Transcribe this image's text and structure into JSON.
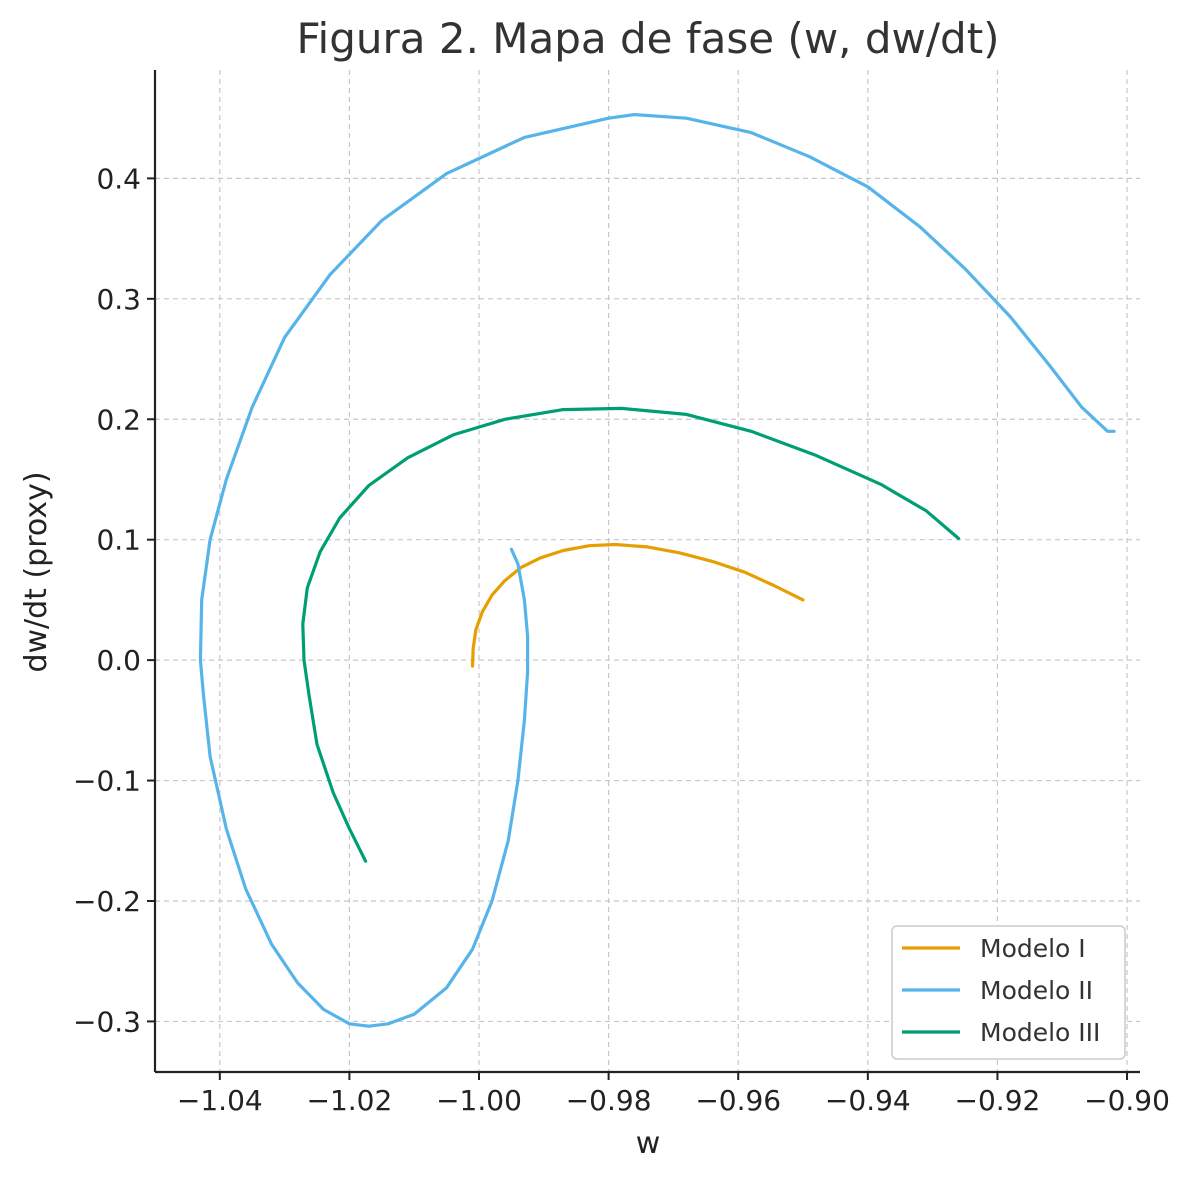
{
  "chart_data": {
    "type": "line",
    "title": "Figura 2. Mapa de fase (w, dw/dt)",
    "xlabel": "w",
    "ylabel": "dw/dt (proxy)",
    "xlim": [
      -1.05,
      -0.898
    ],
    "ylim": [
      -0.342,
      0.49
    ],
    "xticks": [
      -1.04,
      -1.02,
      -1.0,
      -0.98,
      -0.96,
      -0.94,
      -0.92,
      -0.9
    ],
    "xtick_labels": [
      "−1.04",
      "−1.02",
      "−1.00",
      "−0.98",
      "−0.96",
      "−0.94",
      "−0.92",
      "−0.90"
    ],
    "yticks": [
      -0.3,
      -0.2,
      -0.1,
      0.0,
      0.1,
      0.2,
      0.3,
      0.4
    ],
    "ytick_labels": [
      "−0.3",
      "−0.2",
      "−0.1",
      "0.0",
      "0.1",
      "0.2",
      "0.3",
      "0.4"
    ],
    "grid": true,
    "legend_position": "lower-right",
    "series": [
      {
        "name": "Modelo I",
        "color": "#E69F00",
        "x": [
          -1.001,
          -1.0009,
          -1.0005,
          -0.9995,
          -0.998,
          -0.996,
          -0.9935,
          -0.9905,
          -0.987,
          -0.983,
          -0.979,
          -0.974,
          -0.969,
          -0.964,
          -0.959,
          -0.9545,
          -0.95
        ],
        "y": [
          -0.005,
          0.01,
          0.025,
          0.04,
          0.054,
          0.066,
          0.077,
          0.085,
          0.091,
          0.095,
          0.096,
          0.094,
          0.089,
          0.082,
          0.073,
          0.062,
          0.05
        ]
      },
      {
        "name": "Modelo II",
        "color": "#56B4E9",
        "x": [
          -0.995,
          -0.994,
          -0.993,
          -0.9925,
          -0.9925,
          -0.993,
          -0.994,
          -0.9955,
          -0.998,
          -1.001,
          -1.005,
          -1.01,
          -1.014,
          -1.017,
          -1.02,
          -1.024,
          -1.028,
          -1.032,
          -1.036,
          -1.039,
          -1.0415,
          -1.0425,
          -1.043,
          -1.0428,
          -1.0415,
          -1.039,
          -1.035,
          -1.03,
          -1.023,
          -1.015,
          -1.005,
          -0.993,
          -0.98,
          -0.976,
          -0.968,
          -0.958,
          -0.949,
          -0.94,
          -0.932,
          -0.925,
          -0.918,
          -0.912,
          -0.907,
          -0.903,
          -0.902
        ],
        "y": [
          0.092,
          0.08,
          0.05,
          0.02,
          -0.01,
          -0.05,
          -0.1,
          -0.15,
          -0.2,
          -0.24,
          -0.272,
          -0.294,
          -0.302,
          -0.304,
          -0.302,
          -0.29,
          -0.268,
          -0.236,
          -0.19,
          -0.14,
          -0.08,
          -0.03,
          0.0,
          0.05,
          0.1,
          0.15,
          0.21,
          0.268,
          0.32,
          0.365,
          0.404,
          0.434,
          0.45,
          0.453,
          0.45,
          0.438,
          0.418,
          0.393,
          0.36,
          0.325,
          0.285,
          0.245,
          0.21,
          0.19,
          0.19
        ]
      },
      {
        "name": "Modelo III",
        "color": "#009E73",
        "x": [
          -1.0175,
          -1.02,
          -1.0225,
          -1.025,
          -1.0262,
          -1.027,
          -1.0272,
          -1.0265,
          -1.0245,
          -1.0215,
          -1.017,
          -1.011,
          -1.004,
          -0.996,
          -0.987,
          -0.978,
          -0.968,
          -0.958,
          -0.948,
          -0.938,
          -0.931,
          -0.926
        ],
        "y": [
          -0.167,
          -0.14,
          -0.11,
          -0.07,
          -0.03,
          0.0,
          0.03,
          0.06,
          0.09,
          0.118,
          0.145,
          0.168,
          0.187,
          0.2,
          0.208,
          0.209,
          0.204,
          0.19,
          0.17,
          0.146,
          0.124,
          0.101
        ]
      }
    ]
  }
}
